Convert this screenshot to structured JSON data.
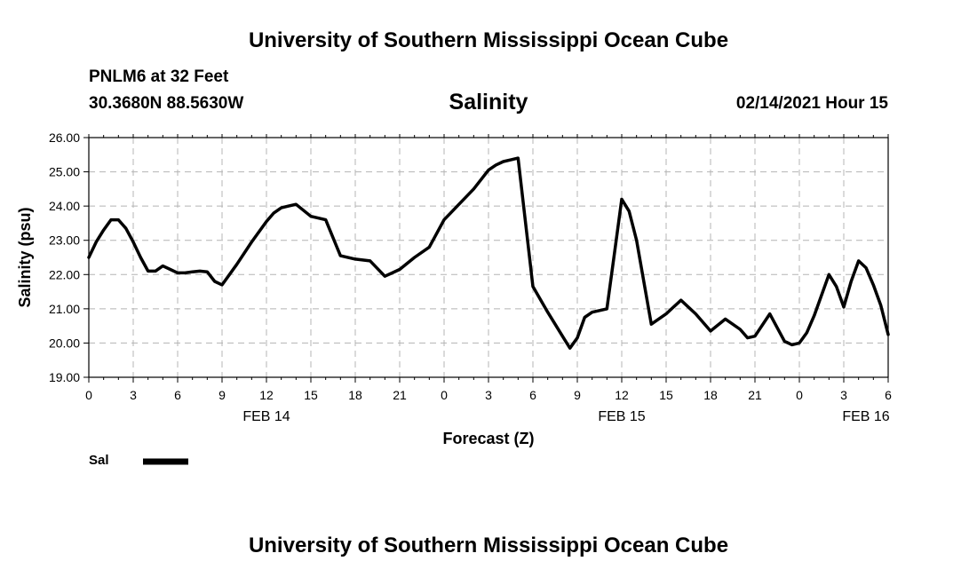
{
  "page": {
    "top_title": "University of Southern Mississippi Ocean Cube",
    "bottom_title": "University of Southern Mississippi Ocean Cube",
    "station": "PNLM6 at 32 Feet",
    "coords": "30.3680N 88.5630W",
    "parameter": "Salinity",
    "datetime": "02/14/2021 Hour 15"
  },
  "legend": {
    "label": "Sal",
    "color": "#000000"
  },
  "chart_data": {
    "type": "line",
    "title": "Salinity",
    "xlabel": "Forecast (Z)",
    "ylabel": "Salinity (psu)",
    "xlim": [
      0,
      54
    ],
    "ylim": [
      19.0,
      26.0
    ],
    "grid": true,
    "y_ticks": [
      "19.00",
      "20.00",
      "21.00",
      "22.00",
      "23.00",
      "24.00",
      "25.00",
      "26.00"
    ],
    "x_ticks": [
      {
        "x": 0,
        "label": "0"
      },
      {
        "x": 3,
        "label": "3"
      },
      {
        "x": 6,
        "label": "6"
      },
      {
        "x": 9,
        "label": "9"
      },
      {
        "x": 12,
        "label": "12"
      },
      {
        "x": 15,
        "label": "15"
      },
      {
        "x": 18,
        "label": "18"
      },
      {
        "x": 21,
        "label": "21"
      },
      {
        "x": 24,
        "label": "0"
      },
      {
        "x": 27,
        "label": "3"
      },
      {
        "x": 30,
        "label": "6"
      },
      {
        "x": 33,
        "label": "9"
      },
      {
        "x": 36,
        "label": "12"
      },
      {
        "x": 39,
        "label": "15"
      },
      {
        "x": 42,
        "label": "18"
      },
      {
        "x": 45,
        "label": "21"
      },
      {
        "x": 48,
        "label": "0"
      },
      {
        "x": 51,
        "label": "3"
      },
      {
        "x": 54,
        "label": "6"
      }
    ],
    "day_labels": [
      {
        "x": 12,
        "label": "FEB 14"
      },
      {
        "x": 36,
        "label": "FEB 15"
      },
      {
        "x": 52.5,
        "label": "FEB 16"
      }
    ],
    "series": [
      {
        "name": "Sal",
        "color": "#000000",
        "x": [
          0,
          0.5,
          1,
          1.5,
          2,
          2.5,
          3,
          3.5,
          4,
          4.5,
          5,
          5.5,
          6,
          6.5,
          7,
          7.5,
          8,
          8.5,
          9,
          10,
          11,
          12,
          12.5,
          13,
          13.5,
          14,
          15,
          16,
          17,
          18,
          19,
          20,
          20.5,
          21,
          22,
          23,
          24,
          25,
          26,
          27,
          27.5,
          28,
          28.5,
          29,
          30,
          31,
          32,
          32.5,
          33,
          33.5,
          34,
          35,
          35.5,
          36,
          36.5,
          37,
          38,
          39,
          39.5,
          40,
          41,
          42,
          43,
          44,
          44.5,
          45,
          46,
          46.5,
          47,
          47.5,
          48,
          48.5,
          49,
          50,
          50.5,
          51,
          51.5,
          52,
          52.5,
          53,
          53.5,
          54
        ],
        "values": [
          22.5,
          22.95,
          23.3,
          23.6,
          23.6,
          23.35,
          22.95,
          22.5,
          22.1,
          22.1,
          22.25,
          22.15,
          22.05,
          22.05,
          22.08,
          22.1,
          22.08,
          21.8,
          21.7,
          22.3,
          22.95,
          23.55,
          23.8,
          23.95,
          24.0,
          24.05,
          23.7,
          23.6,
          22.55,
          22.45,
          22.4,
          21.95,
          22.05,
          22.15,
          22.5,
          22.8,
          23.6,
          24.05,
          24.5,
          25.05,
          25.2,
          25.3,
          25.35,
          25.4,
          21.65,
          20.9,
          20.2,
          19.85,
          20.15,
          20.75,
          20.9,
          21.0,
          22.6,
          24.2,
          23.85,
          23.0,
          20.55,
          20.85,
          21.05,
          21.25,
          20.85,
          20.35,
          20.7,
          20.4,
          20.15,
          20.2,
          20.85,
          20.45,
          20.05,
          19.95,
          20.0,
          20.3,
          20.8,
          22.0,
          21.65,
          21.05,
          21.8,
          22.4,
          22.2,
          21.7,
          21.1,
          20.25
        ]
      }
    ]
  }
}
